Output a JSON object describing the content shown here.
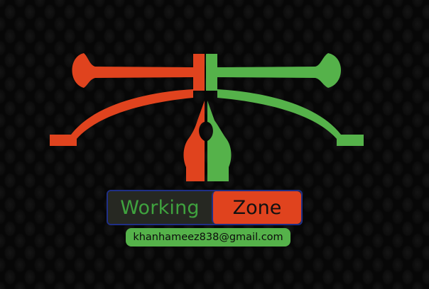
{
  "brand": {
    "word_1": "Working",
    "word_2": "Zone",
    "email": "khanhameez838@gmail.com"
  },
  "colors": {
    "red": "#e0431e",
    "green": "#55b24a",
    "dark_green_text": "#3fa33e",
    "border_blue": "#1f2f86",
    "background": "#070707"
  },
  "icons": {
    "logo": "pen-tool-bezier-icon"
  }
}
